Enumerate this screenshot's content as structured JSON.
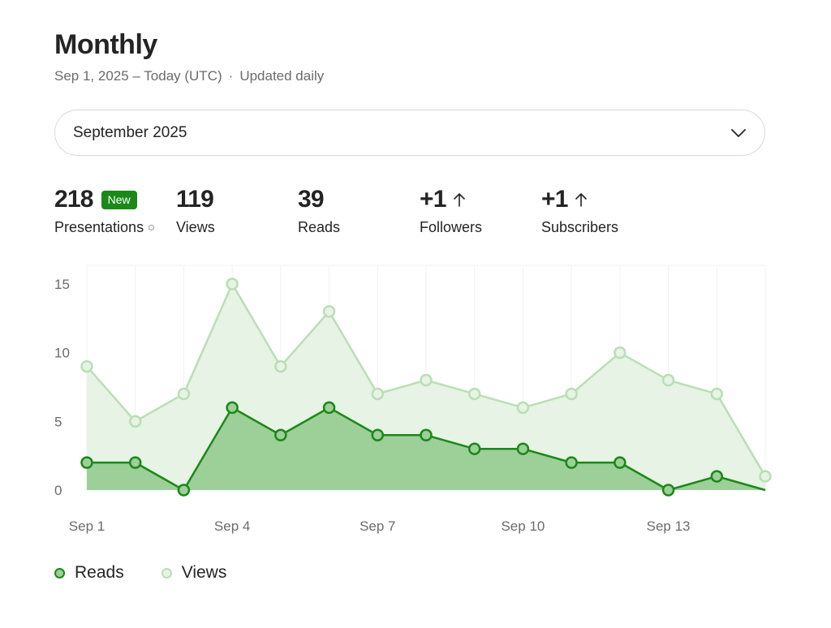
{
  "header": {
    "title": "Monthly",
    "date_range": "Sep 1, 2025 – Today (UTC)",
    "separator": "·",
    "update_note": "Updated daily"
  },
  "month_select": {
    "value": "September 2025"
  },
  "stats": [
    {
      "value": "218",
      "label": "Presentations",
      "badge": "New"
    },
    {
      "value": "119",
      "label": "Views"
    },
    {
      "value": "39",
      "label": "Reads"
    },
    {
      "value": "+1",
      "label": "Followers",
      "trend": "up"
    },
    {
      "value": "+1",
      "label": "Subscribers",
      "trend": "up"
    }
  ],
  "colors": {
    "reads_line": "#1a8917",
    "reads_fill": "#9dcf99",
    "views_line": "#b9dfb5",
    "views_fill": "#e7f3e5",
    "badge": "#1a8917"
  },
  "chart_data": {
    "type": "area",
    "x": [
      "Sep 1",
      "Sep 2",
      "Sep 3",
      "Sep 4",
      "Sep 5",
      "Sep 6",
      "Sep 7",
      "Sep 8",
      "Sep 9",
      "Sep 10",
      "Sep 11",
      "Sep 12",
      "Sep 13",
      "Sep 14",
      "Sep 15"
    ],
    "x_tick_labels": [
      "Sep 1",
      "Sep 4",
      "Sep 7",
      "Sep 10",
      "Sep 13"
    ],
    "y_ticks": [
      0,
      5,
      10,
      15
    ],
    "ylim": [
      0,
      15
    ],
    "series": [
      {
        "name": "Views",
        "values": [
          9,
          5,
          7,
          15,
          9,
          13,
          7,
          8,
          7,
          6,
          7,
          10,
          8,
          7,
          1
        ]
      },
      {
        "name": "Reads",
        "values": [
          2,
          2,
          0,
          6,
          4,
          6,
          4,
          4,
          3,
          3,
          2,
          2,
          0,
          1,
          0
        ]
      }
    ],
    "legend": {
      "position": "bottom-left",
      "entries": [
        "Reads",
        "Views"
      ]
    },
    "grid": "vertical"
  }
}
